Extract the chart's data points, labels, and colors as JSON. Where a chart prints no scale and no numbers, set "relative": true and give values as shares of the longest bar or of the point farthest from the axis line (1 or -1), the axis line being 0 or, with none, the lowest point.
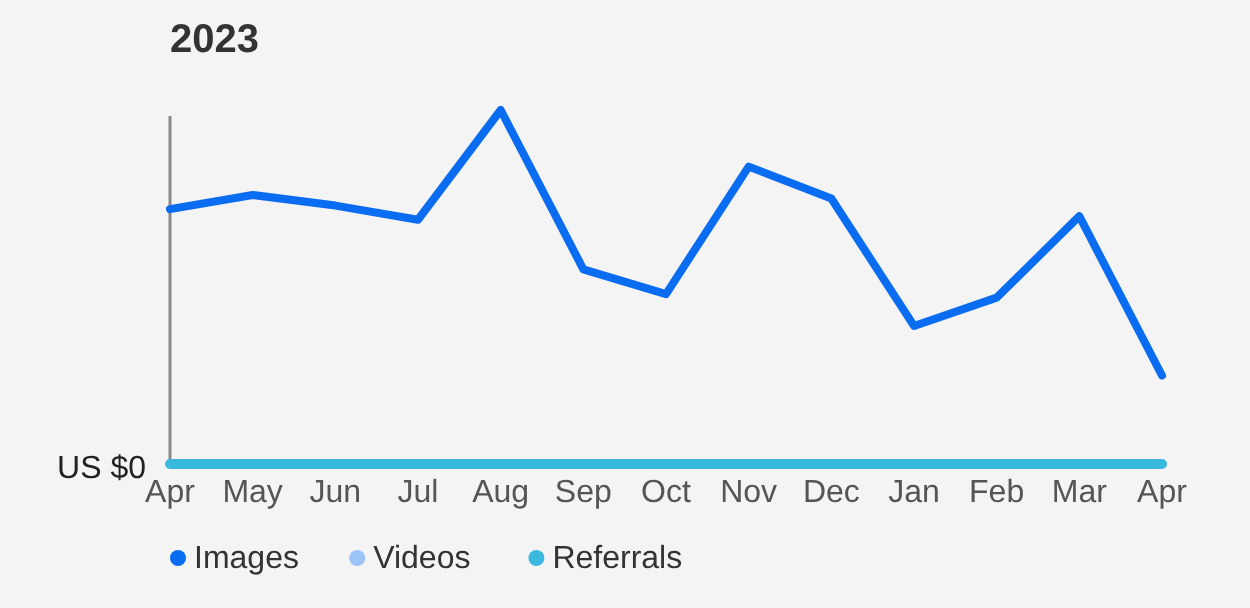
{
  "chart_data": {
    "type": "line",
    "title": "2023",
    "relative": true,
    "legend": "bottom",
    "annotations": [
      "US $0"
    ],
    "categories": [
      "Apr",
      "May",
      "Jun",
      "Jul",
      "Aug",
      "Sep",
      "Oct",
      "Nov",
      "Dec",
      "Jan",
      "Feb",
      "Mar",
      "Apr"
    ],
    "series": [
      {
        "name": "Images",
        "color": "#0a6cf0",
        "values": [
          0.72,
          0.76,
          0.73,
          0.69,
          1,
          0.55,
          0.48,
          0.84,
          0.75,
          0.39,
          0.47,
          0.7,
          0.25
        ]
      },
      {
        "name": "Videos",
        "color": "#9cc3f5",
        "values": [
          null,
          null,
          null,
          null,
          null,
          null,
          null,
          null,
          null,
          null,
          null,
          null,
          null
        ]
      },
      {
        "name": "Referrals",
        "color": "#3ab8e0",
        "values": [
          0,
          0,
          0,
          0,
          0,
          0,
          0,
          0,
          0,
          0,
          0,
          0,
          0
        ]
      }
    ]
  }
}
